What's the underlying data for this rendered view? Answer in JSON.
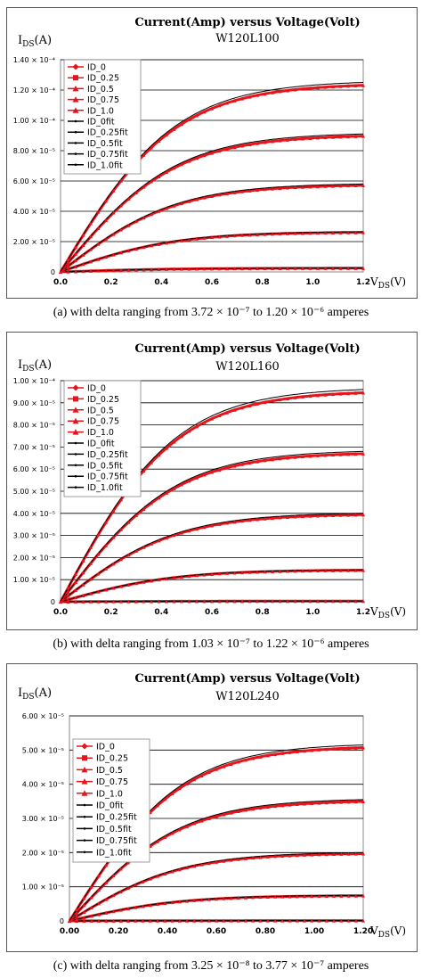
{
  "chart_data": [
    {
      "type": "line",
      "title": "Current(Amp) versus Voltage(Volt)",
      "subtitle": "W120L100",
      "ylabel": "IDS(A)",
      "xlabel": "VDS(V)",
      "x_ticks": [
        "0.0",
        "0.2",
        "0.4",
        "0.6",
        "0.8",
        "1.0",
        "1.2"
      ],
      "y_ticks": [
        "0",
        "2.00 × 10⁻⁵",
        "4.00 × 10⁻⁵",
        "6.00 × 10⁻⁵",
        "8.00 × 10⁻⁵",
        "1.00 × 10⁻⁴",
        "1.20 × 10⁻⁴",
        "1.40 × 10⁻⁴"
      ],
      "xlim": [
        0,
        1.2
      ],
      "ylim": [
        0,
        0.00014
      ],
      "legend": [
        "ID_0",
        "ID_0.25",
        "ID_0.5",
        "ID_0.75",
        "ID_1.0",
        "ID_0fit",
        "ID_0.25fit",
        "ID_0.5fit",
        "ID_0.75fit",
        "ID_1.0fit"
      ],
      "legend_position": "top-left",
      "grid": "horizontal",
      "series_sat": [
        2.5e-06,
        2.65e-05,
        5.8e-05,
        9.1e-05,
        0.000125
      ],
      "caption": "(a) with delta ranging from 3.72 × 10⁻⁷ to 1.20 × 10⁻⁶ amperes"
    },
    {
      "type": "line",
      "title": "Current(Amp) versus Voltage(Volt)",
      "subtitle": "W120L160",
      "ylabel": "IDS(A)",
      "xlabel": "VDS(V)",
      "x_ticks": [
        "0.0",
        "0.2",
        "0.4",
        "0.6",
        "0.8",
        "1.0",
        "1.2"
      ],
      "y_ticks": [
        "0",
        "1.00 × 10⁻⁵",
        "2.00 × 10⁻⁵",
        "3.00 × 10⁻⁵",
        "4.00 × 10⁻⁵",
        "5.00 × 10⁻⁵",
        "6.00 × 10⁻⁵",
        "7.00 × 10⁻⁵",
        "8.00 × 10⁻⁵",
        "9.00 × 10⁻⁵",
        "1.00 × 10⁻⁴"
      ],
      "xlim": [
        0,
        1.2
      ],
      "ylim": [
        0,
        0.0001
      ],
      "legend": [
        "ID_0",
        "ID_0.25",
        "ID_0.5",
        "ID_0.75",
        "ID_1.0",
        "ID_0fit",
        "ID_0.25fit",
        "ID_0.5fit",
        "ID_0.75fit",
        "ID_1.0fit"
      ],
      "legend_position": "top-left",
      "grid": "horizontal",
      "series_sat": [
        3e-07,
        1.45e-05,
        4e-05,
        6.8e-05,
        9.6e-05
      ],
      "caption": "(b) with delta ranging from 1.03 × 10⁻⁷ to 1.22 × 10⁻⁶ amperes"
    },
    {
      "type": "line",
      "title": "Current(Amp) versus Voltage(Volt)",
      "subtitle": "W120L240",
      "ylabel": "IDS(A)",
      "xlabel": "VDS(V)",
      "x_ticks": [
        "0.00",
        "0.20",
        "0.40",
        "0.60",
        "0.80",
        "1.00",
        "1.20"
      ],
      "y_ticks": [
        "0",
        "1.00 × 10⁻⁵",
        "2.00 × 10⁻⁵",
        "3.00 × 10⁻⁵",
        "4.00 × 10⁻⁵",
        "5.00 × 10⁻⁵",
        "6.00 × 10⁻⁵"
      ],
      "xlim": [
        0,
        1.2
      ],
      "ylim": [
        0,
        6e-05
      ],
      "legend": [
        "ID_0",
        "ID_0.25",
        "ID_0.5",
        "ID_0.75",
        "ID_1.0",
        "ID_0fit",
        "ID_0.25fit",
        "ID_0.5fit",
        "ID_0.75fit",
        "ID_1.0fit"
      ],
      "legend_position": "top-left",
      "grid": "horizontal",
      "series_sat": [
        1e-07,
        7.5e-06,
        2e-05,
        3.55e-05,
        5.15e-05
      ],
      "caption": "(c) with delta ranging from 3.25 × 10⁻⁸ to 3.77 × 10⁻⁷ amperes"
    }
  ],
  "colors": {
    "measured": "#e8141c",
    "fit": "#000000",
    "grid": "#000000"
  }
}
